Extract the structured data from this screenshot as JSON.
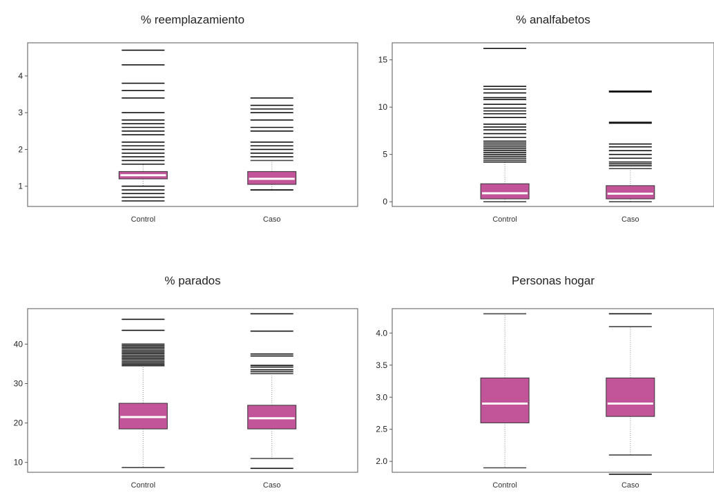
{
  "colors": {
    "box": "#c2549a",
    "median": "#ffffff",
    "frame": "#555555",
    "whisker": "#888888",
    "outlier": "#111111"
  },
  "chart_data": [
    {
      "type": "boxplot",
      "title": "% reemplazamiento",
      "categories": [
        "Control",
        "Caso"
      ],
      "ylim": [
        0.45,
        4.9
      ],
      "yticks": [
        1,
        2,
        3,
        4
      ],
      "boxes": [
        {
          "q1": 1.2,
          "median": 1.3,
          "q3": 1.4,
          "whisker_low": 1.0,
          "whisker_high": 1.6,
          "outliers": [
            0.6,
            0.7,
            0.8,
            0.9,
            1.0,
            1.6,
            1.7,
            1.8,
            1.9,
            2.0,
            2.1,
            2.2,
            2.4,
            2.5,
            2.6,
            2.7,
            2.8,
            3.0,
            3.4,
            3.6,
            3.8,
            4.3,
            4.7
          ]
        },
        {
          "q1": 1.05,
          "median": 1.2,
          "q3": 1.4,
          "whisker_low": 0.9,
          "whisker_high": 1.7,
          "outliers": [
            0.9,
            1.8,
            1.9,
            2.0,
            2.1,
            2.2,
            2.5,
            2.6,
            2.8,
            3.0,
            3.1,
            3.2,
            3.4
          ]
        }
      ]
    },
    {
      "type": "boxplot",
      "title": "% analfabetos",
      "categories": [
        "Control",
        "Caso"
      ],
      "ylim": [
        -0.5,
        16.8
      ],
      "yticks": [
        0,
        5,
        10,
        15
      ],
      "boxes": [
        {
          "q1": 0.3,
          "median": 0.9,
          "q3": 1.9,
          "whisker_low": 0.0,
          "whisker_high": 4.2,
          "outliers": [
            4.2,
            4.4,
            4.6,
            4.8,
            5.0,
            5.2,
            5.4,
            5.6,
            5.8,
            6.0,
            6.2,
            6.4,
            6.8,
            7.2,
            7.6,
            7.9,
            8.2,
            8.9,
            9.3,
            9.6,
            9.9,
            10.3,
            10.8,
            11.0,
            11.5,
            11.9,
            12.2,
            16.2
          ]
        },
        {
          "q1": 0.3,
          "median": 0.85,
          "q3": 1.7,
          "whisker_low": 0.0,
          "whisker_high": 3.5,
          "outliers": [
            3.8,
            4.0,
            4.2,
            4.6,
            5.0,
            5.4,
            5.8,
            6.1,
            8.3,
            8.4,
            11.6,
            11.7
          ]
        }
      ]
    },
    {
      "type": "boxplot",
      "title": "% parados",
      "categories": [
        "Control",
        "Caso"
      ],
      "ylim": [
        7.5,
        49
      ],
      "yticks": [
        10,
        20,
        30,
        40
      ],
      "boxes": [
        {
          "q1": 18.5,
          "median": 21.5,
          "q3": 25.0,
          "whisker_low": 8.7,
          "whisker_high": 34.5,
          "outliers": [
            34.8,
            35.2,
            35.6,
            36.0,
            36.4,
            36.8,
            37.2,
            37.6,
            38.0,
            38.4,
            38.8,
            39.2,
            39.6,
            40.0,
            43.5,
            46.3
          ]
        },
        {
          "q1": 18.5,
          "median": 21.2,
          "q3": 24.5,
          "whisker_low": 11.0,
          "whisker_high": 32.5,
          "outliers": [
            8.5,
            33.0,
            33.5,
            34.2,
            34.6,
            37.0,
            37.5,
            43.3,
            47.7
          ]
        }
      ]
    },
    {
      "type": "boxplot",
      "title": "Personas hogar",
      "categories": [
        "Control",
        "Caso"
      ],
      "ylim": [
        1.83,
        4.38
      ],
      "yticks": [
        2.0,
        2.5,
        3.0,
        3.5,
        4.0
      ],
      "boxes": [
        {
          "q1": 2.6,
          "median": 2.9,
          "q3": 3.3,
          "whisker_low": 1.9,
          "whisker_high": 4.3,
          "outliers": []
        },
        {
          "q1": 2.7,
          "median": 2.9,
          "q3": 3.3,
          "whisker_low": 2.1,
          "whisker_high": 4.1,
          "outliers": [
            1.8,
            4.3
          ]
        }
      ]
    }
  ]
}
